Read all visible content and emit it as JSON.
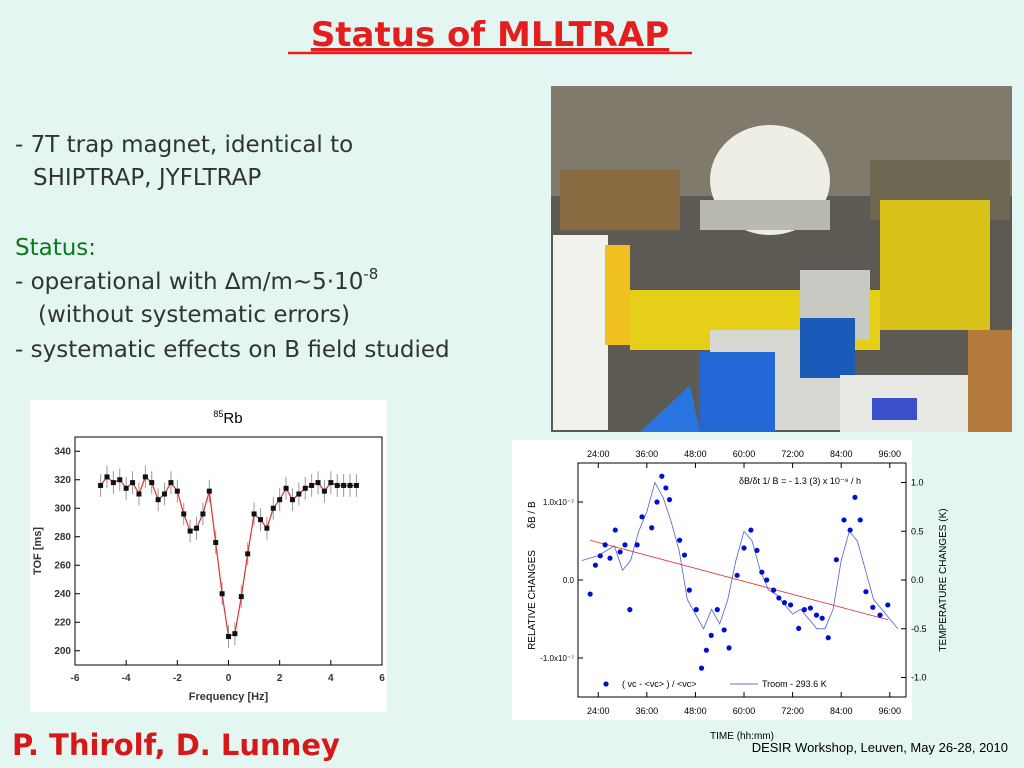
{
  "title": "Status of MLLTRAP",
  "text": {
    "line1": "- 7T trap magnet, identical to",
    "line2": "SHIPTRAP, JYFLTRAP",
    "status": "Status:",
    "line3": "- operational with ∆m/m~5·10",
    "line3_sup": "-8",
    "line4": "(without systematic errors)",
    "line5": "- systematic effects on B field studied"
  },
  "authors": "P. Thirolf, D. Lunney",
  "footer": "DESIR Workshop, Leuven, May 26-28, 2010",
  "chart_data": [
    {
      "type": "scatter",
      "title": "Rb",
      "title_sup": "85",
      "xlabel": "Frequency [Hz]",
      "ylabel": "TOF [ms]",
      "x": [
        -5,
        -4.75,
        -4.5,
        -4.25,
        -4,
        -3.75,
        -3.5,
        -3.25,
        -3,
        -2.75,
        -2.5,
        -2.25,
        -2,
        -1.75,
        -1.5,
        -1.25,
        -1,
        -0.75,
        -0.5,
        -0.25,
        0,
        0.25,
        0.5,
        0.75,
        1,
        1.25,
        1.5,
        1.75,
        2,
        2.25,
        2.5,
        2.75,
        3,
        3.25,
        3.5,
        3.75,
        4,
        4.25,
        4.5,
        4.75,
        5
      ],
      "values": [
        316,
        322,
        318,
        320,
        314,
        318,
        310,
        322,
        318,
        306,
        310,
        318,
        312,
        296,
        284,
        286,
        296,
        312,
        276,
        240,
        210,
        212,
        238,
        268,
        296,
        292,
        286,
        300,
        306,
        314,
        306,
        310,
        314,
        316,
        318,
        312,
        318,
        316,
        316,
        316,
        316
      ],
      "error": 8,
      "color": "#111111",
      "fit_color": "#e03030",
      "xlim": [
        -6,
        6
      ],
      "xticks": [
        -6,
        -4,
        -2,
        0,
        2,
        4,
        6
      ],
      "ylim": [
        190,
        350
      ],
      "yticks": [
        200,
        220,
        240,
        260,
        280,
        300,
        320,
        340
      ]
    },
    {
      "type": "scatter",
      "xlabel": "TIME (hh:mm)",
      "ylabel": "RELATIVE CHANGES",
      "ylabel2": "δB / B",
      "y2label": "TEMPERATURE CHANGES (K)",
      "annotation": "δB/δt 1/ B = - 1.3 (3) x 10⁻⁹ / h",
      "xlim": [
        19,
        100
      ],
      "xticks": [
        {
          "value": 24,
          "label": "24:00"
        },
        {
          "value": 36,
          "label": "36:00"
        },
        {
          "value": 48,
          "label": "48:00"
        },
        {
          "value": 60,
          "label": "60:00"
        },
        {
          "value": 72,
          "label": "72:00"
        },
        {
          "value": 84,
          "label": "84:00"
        },
        {
          "value": 96,
          "label": "96:00"
        }
      ],
      "ylim": [
        -1.5e-07,
        1.5e-07
      ],
      "yticks": [
        {
          "value": -1e-07,
          "label": "-1.0x10⁻⁷"
        },
        {
          "value": 0,
          "label": "0.0"
        },
        {
          "value": 1e-07,
          "label": "1.0x10⁻⁷"
        }
      ],
      "y2lim": [
        -1.2,
        1.2
      ],
      "y2ticks": [
        {
          "value": -1,
          "label": "-1.0"
        },
        -0.5,
        {
          "value": 0,
          "label": "0.0"
        },
        0.5,
        {
          "value": 1,
          "label": "1.0"
        }
      ],
      "series": [
        {
          "name": "( νc - <νc> ) / <νc>",
          "color": "#0010cc",
          "x": [
            22.0,
            23.3,
            24.5,
            25.7,
            26.9,
            28.2,
            29.4,
            30.6,
            31.8,
            33.6,
            34.8,
            37.2,
            38.5,
            39.7,
            40.7,
            41.6,
            44.1,
            45.3,
            46.5,
            48.2,
            49.5,
            50.7,
            51.9,
            53.4,
            55.1,
            56.3,
            58.3,
            60.0,
            61.7,
            63.2,
            64.4,
            65.6,
            67.3,
            68.6,
            70.0,
            71.5,
            73.5,
            74.9,
            76.4,
            77.9,
            79.3,
            80.8,
            82.8,
            84.7,
            86.2,
            87.4,
            88.7,
            90.1,
            91.8,
            93.6,
            95.5
          ],
          "values": [
            -1.8e-08,
            1.9e-08,
            3.1e-08,
            4.5e-08,
            2.8e-08,
            6.4e-08,
            3.6e-08,
            4.5e-08,
            -3.8e-08,
            4.5e-08,
            8.1e-08,
            6.7e-08,
            1e-07,
            1.33e-07,
            1.18e-07,
            1.03e-07,
            5.1e-08,
            3.2e-08,
            -1.3e-08,
            -3.8e-08,
            -1.13e-07,
            -9e-08,
            -7.1e-08,
            -3.8e-08,
            -6.4e-08,
            -8.7e-08,
            6e-09,
            4.1e-08,
            6.4e-08,
            3.8e-08,
            1e-08,
            0,
            -1.3e-08,
            -2.3e-08,
            -2.9e-08,
            -3.2e-08,
            -6.2e-08,
            -3.8e-08,
            -3.6e-08,
            -4.5e-08,
            -4.9e-08,
            -7.4e-08,
            2.6e-08,
            7.7e-08,
            6.4e-08,
            1.06e-07,
            7.7e-08,
            -1.5e-08,
            -3.5e-08,
            -4.5e-08,
            -3.2e-08
          ]
        },
        {
          "name": "Troom - 293.6 K",
          "color": "#3344cc",
          "axis": "y2",
          "x": [
            20,
            24,
            28,
            30,
            32,
            34,
            36,
            38,
            40,
            42,
            44,
            46,
            48,
            50,
            52,
            54,
            56,
            58,
            60,
            62,
            64,
            66,
            68,
            70,
            72,
            74,
            76,
            78,
            80,
            82,
            84,
            86,
            88,
            90,
            92,
            94,
            96,
            98
          ],
          "values": [
            0.2,
            0.25,
            0.35,
            0.1,
            0.2,
            0.5,
            0.7,
            1.0,
            0.85,
            0.6,
            0.3,
            -0.2,
            -0.35,
            -0.5,
            -0.3,
            -0.45,
            -0.2,
            0.2,
            0.5,
            0.4,
            0.1,
            -0.1,
            -0.15,
            -0.25,
            -0.35,
            -0.3,
            -0.4,
            -0.5,
            -0.5,
            -0.3,
            0.2,
            0.5,
            0.4,
            0.1,
            -0.2,
            -0.3,
            -0.4,
            -0.5
          ]
        }
      ],
      "trend": {
        "color": "#e03030",
        "x": [
          22,
          95.5
        ],
        "values": [
          5.1e-08,
          -5.1e-08
        ]
      }
    }
  ]
}
